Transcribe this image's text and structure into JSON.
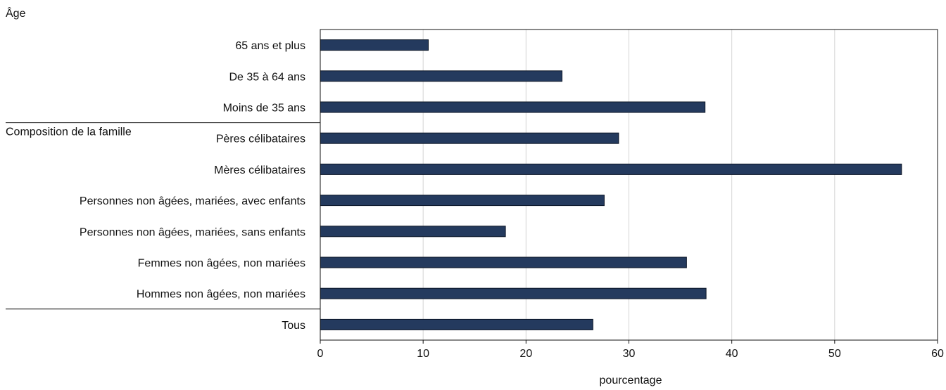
{
  "chart_data": {
    "type": "bar",
    "orientation": "horizontal",
    "groups": [
      {
        "label": "Âge",
        "categories": [
          "65 ans et plus",
          "De 35 à 64 ans",
          "Moins de 35 ans"
        ]
      },
      {
        "label": "Composition de la famille",
        "categories": [
          "Pères célibataires",
          "Mères célibataires",
          "Personnes non âgées, mariées, avec enfants",
          "Personnes non âgées, mariées, sans enfants",
          "Femmes non âgées, non mariées",
          "Hommes non âgées, non mariées"
        ]
      },
      {
        "label": "",
        "categories": [
          "Tous"
        ]
      }
    ],
    "categories": [
      "65 ans et plus",
      "De 35 à 64 ans",
      "Moins de 35 ans",
      "Pères célibataires",
      "Mères célibataires",
      "Personnes non âgées, mariées, avec enfants",
      "Personnes non âgées, mariées, sans enfants",
      "Femmes non âgées, non mariées",
      "Hommes non âgées, non mariées",
      "Tous"
    ],
    "values": [
      10.5,
      23.5,
      37.4,
      29.0,
      56.5,
      27.6,
      18.0,
      35.6,
      37.5,
      26.5
    ],
    "xlabel": "pourcentage",
    "ylabel": "",
    "xlim": [
      0,
      60
    ],
    "xticks": [
      "0",
      "10",
      "20",
      "30",
      "40",
      "50",
      "60"
    ],
    "grid": true,
    "bar_color": "#243a5e"
  }
}
